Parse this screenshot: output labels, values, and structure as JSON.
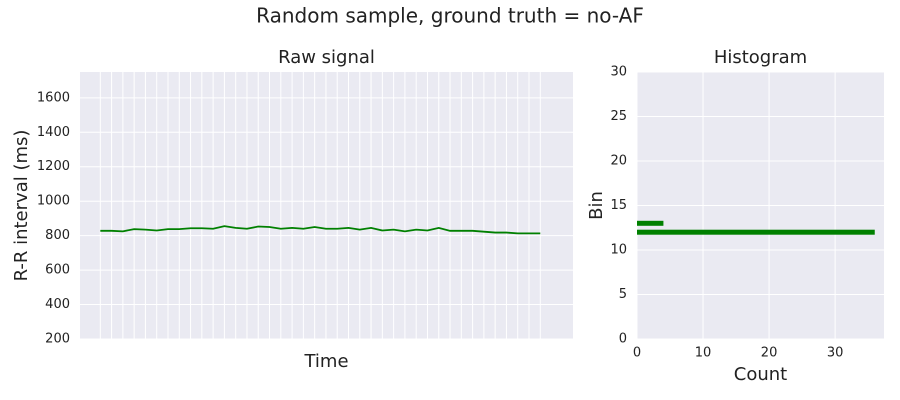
{
  "title": "Random sample, ground truth = no-AF",
  "chart_data": [
    {
      "type": "line",
      "title": "Raw signal",
      "xlabel": "Time",
      "ylabel": "R-R interval (ms)",
      "x": [
        0,
        1,
        2,
        3,
        4,
        5,
        6,
        7,
        8,
        9,
        10,
        11,
        12,
        13,
        14,
        15,
        16,
        17,
        18,
        19,
        20,
        21,
        22,
        23,
        24,
        25,
        26,
        27,
        28,
        29,
        30,
        31,
        32,
        33,
        34,
        35,
        36,
        37,
        38,
        39
      ],
      "values": [
        828,
        828,
        825,
        838,
        835,
        830,
        838,
        838,
        843,
        843,
        840,
        855,
        845,
        840,
        853,
        850,
        840,
        845,
        840,
        850,
        840,
        840,
        845,
        835,
        845,
        830,
        835,
        825,
        835,
        830,
        845,
        828,
        828,
        828,
        823,
        818,
        818,
        813,
        813,
        813
      ],
      "color": "#008000",
      "xlim": [
        -1.8,
        41.9
      ],
      "xticks": [
        0,
        1,
        2,
        3,
        4,
        5,
        6,
        7,
        8,
        9,
        10,
        11,
        12,
        13,
        14,
        15,
        16,
        17,
        18,
        19,
        20,
        21,
        22,
        23,
        24,
        25,
        26,
        27,
        28,
        29,
        30,
        31,
        32,
        33,
        34,
        35,
        36,
        37,
        38,
        39
      ],
      "ylim": [
        200,
        1750
      ],
      "yticks": [
        200,
        400,
        600,
        800,
        1000,
        1200,
        1400,
        1600
      ],
      "grid": true
    },
    {
      "type": "barh",
      "title": "Histogram",
      "xlabel": "Count",
      "ylabel": "Bin",
      "y": [
        12,
        13
      ],
      "values": [
        36,
        4
      ],
      "color": "#008000",
      "xlim": [
        0,
        37.4
      ],
      "xticks": [
        0,
        10,
        20,
        30
      ],
      "ylim": [
        0,
        30
      ],
      "yticks": [
        0,
        5,
        10,
        15,
        20,
        25,
        30
      ],
      "grid": true
    }
  ]
}
